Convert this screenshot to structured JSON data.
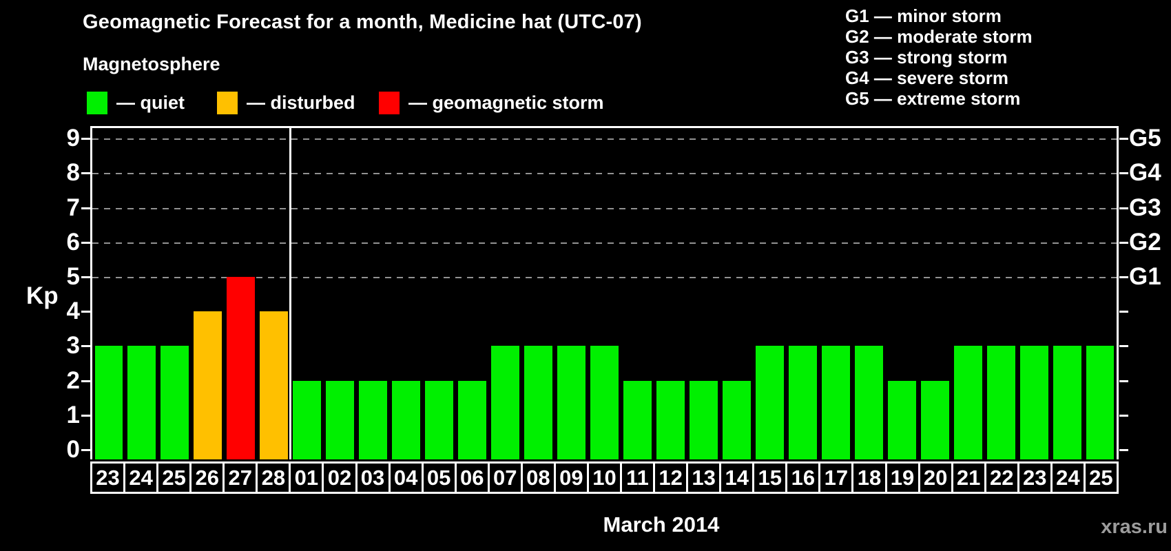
{
  "title": "Geomagnetic Forecast for a month, Medicine hat (UTC-07)",
  "subtitle": "Magnetosphere",
  "legend": {
    "quiet": {
      "label": "— quiet",
      "color": "#00f000"
    },
    "disturbed": {
      "label": "— disturbed",
      "color": "#ffc000"
    },
    "storm": {
      "label": "— geomagnetic storm",
      "color": "#ff0000"
    }
  },
  "storm_scale_legend": [
    "G1 — minor storm",
    "G2 — moderate storm",
    "G3 — strong storm",
    "G4 — severe storm",
    "G5 — extreme storm"
  ],
  "watermark": "xras.ru",
  "chart_data": {
    "type": "bar",
    "title": "Geomagnetic Forecast for a month, Medicine hat (UTC-07)",
    "xlabel": "March 2014",
    "ylabel": "Kp",
    "ylim": [
      0,
      9.4
    ],
    "yticks": [
      0,
      1,
      2,
      3,
      4,
      5,
      6,
      7,
      8,
      9
    ],
    "grid": "horizontal dashed lines at Kp 5–9",
    "legend_position": "top",
    "right_axis": {
      "label_levels": [
        {
          "kp": 5,
          "label": "G1"
        },
        {
          "kp": 6,
          "label": "G2"
        },
        {
          "kp": 7,
          "label": "G3"
        },
        {
          "kp": 8,
          "label": "G4"
        },
        {
          "kp": 9,
          "label": "G5"
        }
      ]
    },
    "color_rule": {
      "quiet_below": 4,
      "disturbed_at": 4,
      "storm_at_or_above": 5
    },
    "month_divider_after_index": 5,
    "days": [
      {
        "day": "23",
        "kp": 3
      },
      {
        "day": "24",
        "kp": 3
      },
      {
        "day": "25",
        "kp": 3
      },
      {
        "day": "26",
        "kp": 4
      },
      {
        "day": "27",
        "kp": 5
      },
      {
        "day": "28",
        "kp": 4
      },
      {
        "day": "01",
        "kp": 2
      },
      {
        "day": "02",
        "kp": 2
      },
      {
        "day": "03",
        "kp": 2
      },
      {
        "day": "04",
        "kp": 2
      },
      {
        "day": "05",
        "kp": 2
      },
      {
        "day": "06",
        "kp": 2
      },
      {
        "day": "07",
        "kp": 3
      },
      {
        "day": "08",
        "kp": 3
      },
      {
        "day": "09",
        "kp": 3
      },
      {
        "day": "10",
        "kp": 3
      },
      {
        "day": "11",
        "kp": 2
      },
      {
        "day": "12",
        "kp": 2
      },
      {
        "day": "13",
        "kp": 2
      },
      {
        "day": "14",
        "kp": 2
      },
      {
        "day": "15",
        "kp": 3
      },
      {
        "day": "16",
        "kp": 3
      },
      {
        "day": "17",
        "kp": 3
      },
      {
        "day": "18",
        "kp": 3
      },
      {
        "day": "19",
        "kp": 2
      },
      {
        "day": "20",
        "kp": 2
      },
      {
        "day": "21",
        "kp": 3
      },
      {
        "day": "22",
        "kp": 3
      },
      {
        "day": "23",
        "kp": 3
      },
      {
        "day": "24",
        "kp": 3
      },
      {
        "day": "25",
        "kp": 3
      }
    ]
  }
}
